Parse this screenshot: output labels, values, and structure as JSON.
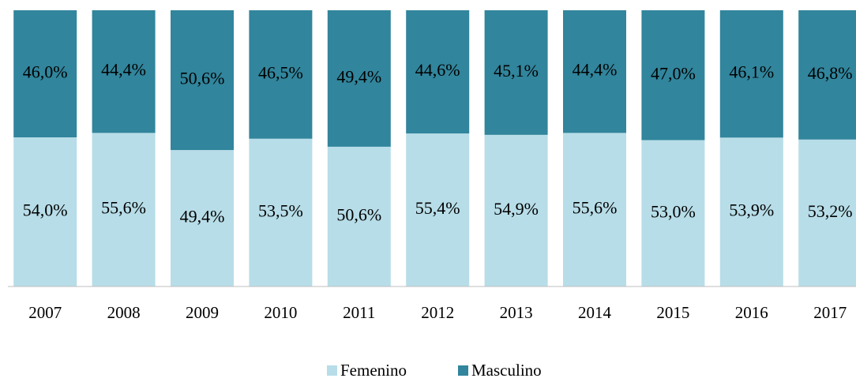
{
  "chart_data": {
    "type": "stacked_bar",
    "categories": [
      "2007",
      "2008",
      "2009",
      "2010",
      "2011",
      "2012",
      "2013",
      "2014",
      "2015",
      "2016",
      "2017"
    ],
    "series": [
      {
        "name": "Femenino",
        "color": "#b7dde8",
        "values": [
          54.0,
          55.6,
          49.4,
          53.5,
          50.6,
          55.4,
          54.9,
          55.6,
          53.0,
          53.9,
          53.2
        ],
        "value_labels": [
          "54,0%",
          "55,6%",
          "49,4%",
          "53,5%",
          "50,6%",
          "55,4%",
          "54,9%",
          "55,6%",
          "53,0%",
          "53,9%",
          "53,2%"
        ]
      },
      {
        "name": "Masculino",
        "color": "#31859c",
        "values": [
          46.0,
          44.4,
          50.6,
          46.5,
          49.4,
          44.6,
          45.1,
          44.4,
          47.0,
          46.1,
          46.8
        ],
        "value_labels": [
          "46,0%",
          "44,4%",
          "50,6%",
          "46,5%",
          "49,4%",
          "44,6%",
          "45,1%",
          "44,4%",
          "47,0%",
          "46,1%",
          "46,8%"
        ]
      }
    ],
    "ylim": [
      0,
      100
    ],
    "legend": "bottom"
  }
}
